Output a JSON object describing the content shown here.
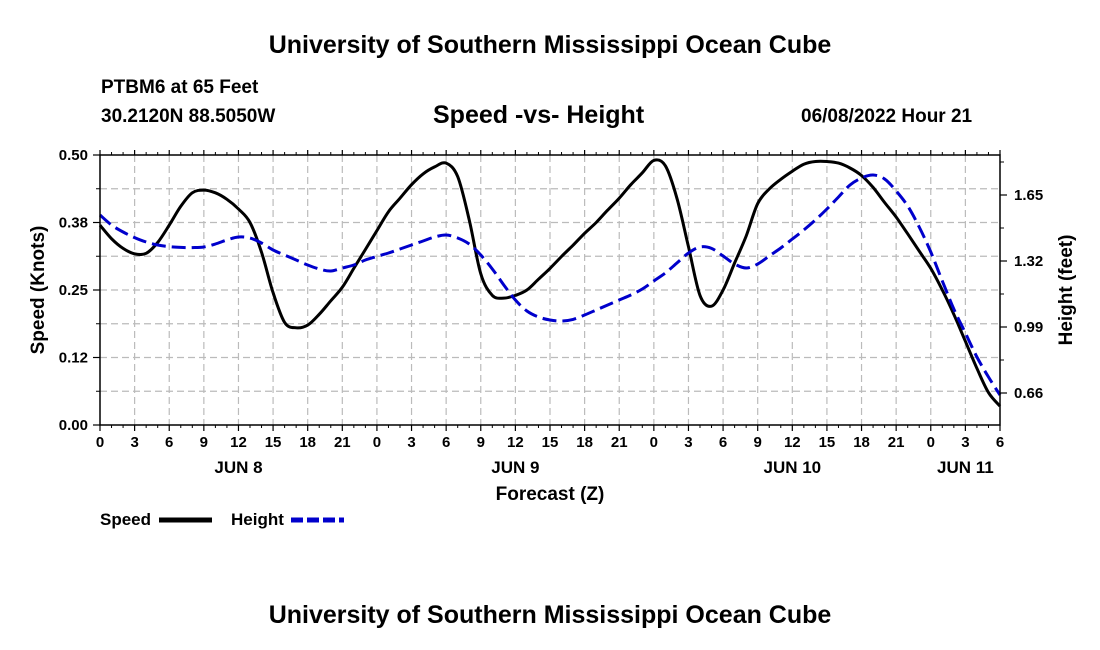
{
  "header": {
    "title": "University of Southern Mississippi Ocean Cube",
    "station": "PTBM6 at 65 Feet",
    "coords": "30.2120N  88.5050W",
    "subtitle": "Speed -vs- Height",
    "datetime": "06/08/2022 Hour 21"
  },
  "footer": {
    "title": "University of Southern Mississippi Ocean Cube"
  },
  "colors": {
    "speed": "#000000",
    "height": "#0000cc",
    "grid": "#bbbbbb"
  },
  "chart_data": {
    "type": "line",
    "title": "Speed -vs- Height",
    "xlabel": "Forecast (Z)",
    "ylabel": "Speed (Knots)",
    "y2label": "Height (feet)",
    "x_range": [
      0,
      78
    ],
    "x_ticks": [
      0,
      3,
      6,
      9,
      12,
      15,
      18,
      21,
      24,
      27,
      30,
      33,
      36,
      39,
      42,
      45,
      48,
      51,
      54,
      57,
      60,
      63,
      66,
      69,
      72,
      75,
      78
    ],
    "x_tick_labels": [
      "0",
      "3",
      "6",
      "9",
      "12",
      "15",
      "18",
      "21",
      "0",
      "3",
      "6",
      "9",
      "12",
      "15",
      "18",
      "21",
      "0",
      "3",
      "6",
      "9",
      "12",
      "15",
      "18",
      "21",
      "0",
      "3",
      "6"
    ],
    "day_labels": [
      {
        "x": 12,
        "label": "JUN 8"
      },
      {
        "x": 36,
        "label": "JUN 9"
      },
      {
        "x": 60,
        "label": "JUN 10"
      },
      {
        "x": 75,
        "label": "JUN 11"
      }
    ],
    "ylim": [
      0,
      0.5
    ],
    "y_ticks": [
      0,
      0.125,
      0.25,
      0.375,
      0.5
    ],
    "y_tick_labels": [
      "0.00",
      "0.12",
      "0.25",
      "0.38",
      "0.50"
    ],
    "y2lim": [
      0.5,
      1.85
    ],
    "y2_ticks": [
      0.66,
      0.99,
      1.32,
      1.65
    ],
    "y2_tick_labels": [
      "0.66",
      "0.99",
      "1.32",
      "1.65"
    ],
    "legend": {
      "position": "bottom-left",
      "entries": [
        "Speed",
        "Height"
      ]
    },
    "series": [
      {
        "name": "Speed",
        "axis": "left",
        "style": "solid",
        "x": [
          0,
          1,
          2,
          3,
          4,
          5,
          6,
          7,
          8,
          9,
          10,
          11,
          12,
          13,
          14,
          15,
          16,
          17,
          18,
          19,
          20,
          21,
          22,
          23,
          24,
          25,
          26,
          27,
          28,
          29,
          30,
          31,
          32,
          33,
          34,
          35,
          36,
          37,
          38,
          39,
          40,
          41,
          42,
          43,
          44,
          45,
          46,
          47,
          48,
          49,
          50,
          51,
          52,
          53,
          54,
          55,
          56,
          57,
          58,
          59,
          60,
          61,
          62,
          63,
          64,
          65,
          66,
          67,
          68,
          69,
          70,
          71,
          72,
          73,
          74,
          75,
          76,
          77,
          78
        ],
        "values": [
          0.37,
          0.345,
          0.327,
          0.317,
          0.318,
          0.338,
          0.37,
          0.405,
          0.43,
          0.435,
          0.43,
          0.418,
          0.4,
          0.375,
          0.32,
          0.245,
          0.19,
          0.18,
          0.185,
          0.205,
          0.23,
          0.255,
          0.29,
          0.325,
          0.36,
          0.395,
          0.42,
          0.445,
          0.465,
          0.478,
          0.485,
          0.46,
          0.38,
          0.28,
          0.24,
          0.235,
          0.24,
          0.25,
          0.27,
          0.29,
          0.312,
          0.333,
          0.355,
          0.375,
          0.398,
          0.42,
          0.445,
          0.467,
          0.49,
          0.48,
          0.42,
          0.33,
          0.24,
          0.22,
          0.25,
          0.3,
          0.35,
          0.41,
          0.437,
          0.455,
          0.47,
          0.483,
          0.488,
          0.488,
          0.485,
          0.476,
          0.462,
          0.44,
          0.412,
          0.385,
          0.354,
          0.322,
          0.29,
          0.25,
          0.205,
          0.155,
          0.105,
          0.06,
          0.035
        ]
      },
      {
        "name": "Height",
        "axis": "right",
        "style": "dashed",
        "x": [
          0,
          1,
          2,
          3,
          4,
          5,
          6,
          7,
          8,
          9,
          10,
          11,
          12,
          13,
          14,
          15,
          16,
          17,
          18,
          19,
          20,
          21,
          22,
          23,
          24,
          25,
          26,
          27,
          28,
          29,
          30,
          31,
          32,
          33,
          34,
          35,
          36,
          37,
          38,
          39,
          40,
          41,
          42,
          43,
          44,
          45,
          46,
          47,
          48,
          49,
          50,
          51,
          52,
          53,
          54,
          55,
          56,
          57,
          58,
          59,
          60,
          61,
          62,
          63,
          64,
          65,
          66,
          67,
          68,
          69,
          70,
          71,
          72,
          73,
          74,
          75,
          76,
          77,
          78
        ],
        "values": [
          1.55,
          1.5,
          1.465,
          1.437,
          1.415,
          1.4,
          1.392,
          1.388,
          1.387,
          1.39,
          1.405,
          1.425,
          1.44,
          1.435,
          1.41,
          1.375,
          1.35,
          1.325,
          1.3,
          1.28,
          1.27,
          1.285,
          1.3,
          1.325,
          1.343,
          1.36,
          1.38,
          1.4,
          1.42,
          1.44,
          1.45,
          1.435,
          1.405,
          1.35,
          1.28,
          1.2,
          1.125,
          1.07,
          1.04,
          1.025,
          1.02,
          1.028,
          1.05,
          1.075,
          1.1,
          1.125,
          1.15,
          1.18,
          1.22,
          1.26,
          1.31,
          1.36,
          1.39,
          1.383,
          1.345,
          1.305,
          1.285,
          1.305,
          1.345,
          1.385,
          1.43,
          1.475,
          1.525,
          1.58,
          1.64,
          1.7,
          1.735,
          1.75,
          1.73,
          1.67,
          1.595,
          1.49,
          1.365,
          1.22,
          1.08,
          0.96,
          0.84,
          0.74,
          0.65
        ]
      }
    ]
  }
}
